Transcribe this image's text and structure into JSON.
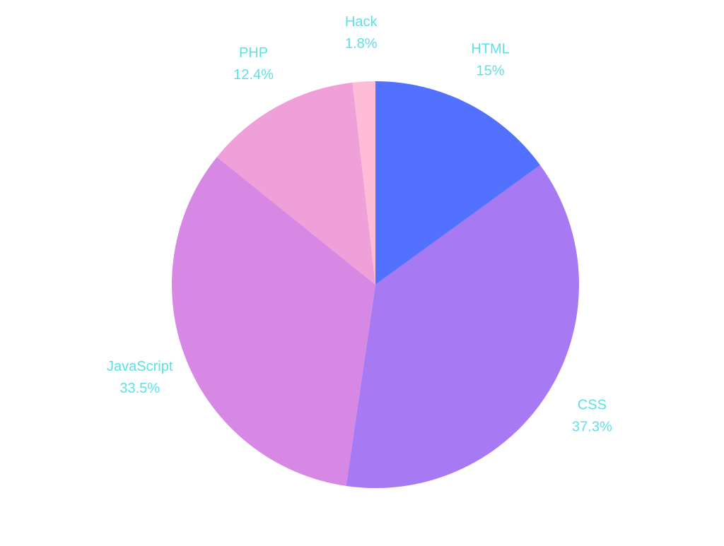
{
  "chart_data": {
    "type": "pie",
    "title": "",
    "label_color": "#5ce1e6",
    "slices": [
      {
        "name": "HTML",
        "value": 15,
        "pct_label": "15%",
        "color": "#5271ff"
      },
      {
        "name": "CSS",
        "value": 37.3,
        "pct_label": "37.3%",
        "color": "#a779f2"
      },
      {
        "name": "JavaScript",
        "value": 33.5,
        "pct_label": "33.5%",
        "color": "#d688e4"
      },
      {
        "name": "PHP",
        "value": 12.4,
        "pct_label": "12.4%",
        "color": "#f0a0d8"
      },
      {
        "name": "Hack",
        "value": 1.8,
        "pct_label": "1.8%",
        "color": "#ffbcd6"
      }
    ]
  }
}
